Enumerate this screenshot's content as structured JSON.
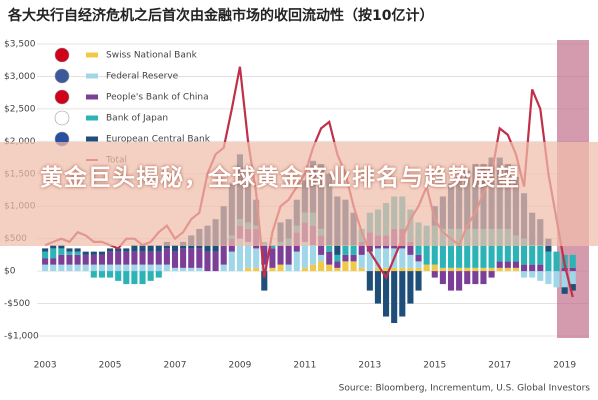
{
  "chart_data": {
    "type": "bar",
    "title": "各大央行自经济危机之后首次由金融市场的收回流动性（按10亿计）",
    "source": "Source: Bloomberg, Incrementum, U.S. Global Investors",
    "x": [
      2003,
      2003.25,
      2003.5,
      2003.75,
      2004,
      2004.25,
      2004.5,
      2004.75,
      2005,
      2005.25,
      2005.5,
      2005.75,
      2006,
      2006.25,
      2006.5,
      2006.75,
      2007,
      2007.25,
      2007.5,
      2007.75,
      2008,
      2008.25,
      2008.5,
      2008.75,
      2009,
      2009.25,
      2009.5,
      2009.75,
      2010,
      2010.25,
      2010.5,
      2010.75,
      2011,
      2011.25,
      2011.5,
      2011.75,
      2012,
      2012.25,
      2012.5,
      2012.75,
      2013,
      2013.25,
      2013.5,
      2013.75,
      2014,
      2014.25,
      2014.5,
      2014.75,
      2015,
      2015.25,
      2015.5,
      2015.75,
      2016,
      2016.25,
      2016.5,
      2016.75,
      2017,
      2017.25,
      2017.5,
      2017.75,
      2018,
      2018.25,
      2018.5,
      2018.75,
      2019,
      2019.25
    ],
    "xlim": [
      2002.75,
      2019.75
    ],
    "xticks": [
      2003,
      2005,
      2007,
      2009,
      2011,
      2013,
      2015,
      2017,
      2019
    ],
    "ylim": [
      -1000,
      3500
    ],
    "yticks": [
      {
        "value": -1000,
        "label": "-$1,000"
      },
      {
        "value": -500,
        "label": "-$500"
      },
      {
        "value": 0,
        "label": "$0"
      },
      {
        "value": 500,
        "label": "$500"
      },
      {
        "value": 1000,
        "label": "$1,000"
      },
      {
        "value": 1500,
        "label": "$1,500"
      },
      {
        "value": 2000,
        "label": "$2,000"
      },
      {
        "value": 2500,
        "label": "$2,500"
      },
      {
        "value": 3000,
        "label": "$3,000"
      },
      {
        "value": 3500,
        "label": "$3,500"
      }
    ],
    "grid": true,
    "series": [
      {
        "name": "Swiss National Bank",
        "color": "#f0c84a",
        "values": [
          0,
          0,
          0,
          0,
          0,
          0,
          0,
          0,
          0,
          0,
          0,
          0,
          0,
          0,
          0,
          0,
          0,
          0,
          0,
          0,
          0,
          0,
          0,
          0,
          0,
          50,
          50,
          0,
          50,
          100,
          0,
          0,
          50,
          100,
          150,
          100,
          50,
          150,
          150,
          50,
          0,
          50,
          50,
          50,
          50,
          50,
          50,
          100,
          100,
          50,
          50,
          50,
          50,
          50,
          50,
          50,
          50,
          50,
          50,
          0,
          0,
          0,
          0,
          0,
          0,
          0
        ]
      },
      {
        "name": "Federal Reserve",
        "color": "#9fd6e8",
        "values": [
          100,
          100,
          100,
          100,
          100,
          100,
          100,
          100,
          100,
          100,
          100,
          100,
          100,
          100,
          100,
          100,
          50,
          50,
          50,
          50,
          0,
          0,
          100,
          300,
          500,
          400,
          300,
          100,
          0,
          0,
          100,
          300,
          400,
          300,
          100,
          0,
          0,
          0,
          0,
          200,
          300,
          300,
          300,
          300,
          300,
          200,
          100,
          0,
          0,
          0,
          0,
          0,
          0,
          0,
          0,
          0,
          0,
          0,
          0,
          -100,
          -100,
          -150,
          -200,
          -250,
          -250,
          -200
        ]
      },
      {
        "name": "People's Bank of China",
        "color": "#7b3f98",
        "values": [
          100,
          100,
          150,
          150,
          150,
          150,
          150,
          150,
          200,
          200,
          200,
          200,
          200,
          200,
          200,
          250,
          250,
          300,
          300,
          300,
          300,
          300,
          300,
          200,
          200,
          200,
          300,
          300,
          300,
          300,
          300,
          300,
          300,
          300,
          300,
          200,
          100,
          100,
          100,
          200,
          300,
          200,
          200,
          300,
          300,
          200,
          100,
          0,
          -100,
          -200,
          -300,
          -300,
          -200,
          -200,
          -200,
          -100,
          100,
          100,
          100,
          100,
          100,
          100,
          0,
          0,
          50,
          50
        ]
      },
      {
        "name": "Bank of Japan",
        "color": "#2bb3b6",
        "values": [
          100,
          150,
          100,
          50,
          50,
          0,
          -100,
          -100,
          -100,
          -150,
          -200,
          -200,
          -200,
          -150,
          -100,
          0,
          0,
          0,
          0,
          0,
          0,
          0,
          0,
          50,
          100,
          100,
          50,
          50,
          50,
          50,
          100,
          100,
          150,
          200,
          100,
          100,
          100,
          150,
          150,
          200,
          300,
          400,
          500,
          500,
          500,
          500,
          500,
          600,
          600,
          600,
          600,
          600,
          600,
          600,
          600,
          600,
          500,
          500,
          400,
          400,
          300,
          300,
          300,
          300,
          200,
          200
        ]
      },
      {
        "name": "European Central Bank",
        "color": "#1f4e79",
        "values": [
          50,
          50,
          50,
          50,
          50,
          50,
          50,
          50,
          50,
          50,
          50,
          100,
          100,
          100,
          100,
          100,
          100,
          100,
          200,
          300,
          400,
          500,
          600,
          800,
          1000,
          600,
          400,
          -300,
          0,
          300,
          300,
          400,
          500,
          800,
          1000,
          1100,
          900,
          700,
          500,
          0,
          -300,
          -500,
          -700,
          -800,
          -700,
          -500,
          -300,
          0,
          300,
          500,
          700,
          800,
          900,
          1000,
          1000,
          1100,
          1100,
          1000,
          900,
          700,
          500,
          400,
          200,
          0,
          -100,
          -100
        ]
      },
      {
        "name": "Total",
        "color": "#c0304a",
        "style": "line",
        "values": [
          400,
          450,
          500,
          450,
          600,
          550,
          450,
          450,
          400,
          350,
          500,
          500,
          400,
          450,
          600,
          700,
          500,
          600,
          800,
          900,
          1500,
          1800,
          1900,
          2500,
          3150,
          2000,
          1200,
          -100,
          600,
          1000,
          1100,
          1300,
          1500,
          1900,
          2200,
          2300,
          1800,
          1500,
          1000,
          600,
          300,
          100,
          -100,
          200,
          500,
          800,
          1000,
          1300,
          800,
          600,
          500,
          400,
          700,
          900,
          1200,
          1500,
          2200,
          2100,
          1800,
          1300,
          2800,
          2500,
          1500,
          800,
          100,
          -400
        ]
      }
    ]
  },
  "overlay": {
    "text": "黄金巨头揭秘，全球黄金商业排名与趋势展望"
  }
}
